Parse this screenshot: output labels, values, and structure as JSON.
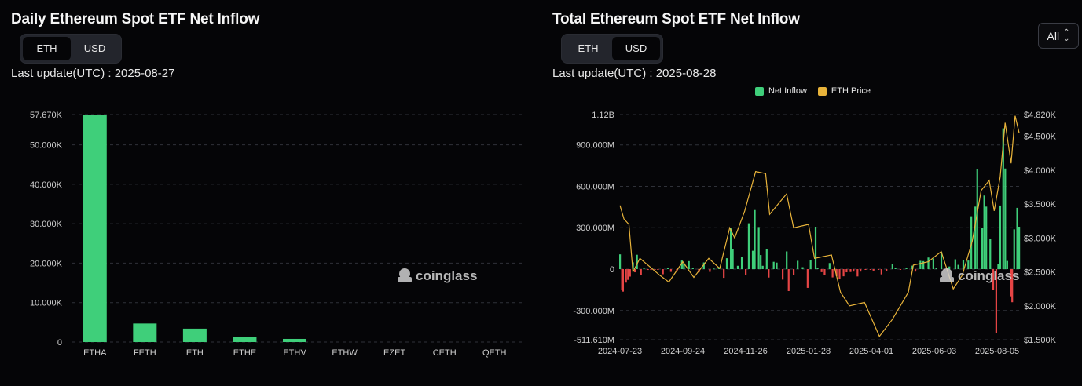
{
  "left": {
    "title": "Daily Ethereum Spot ETF Net Inflow",
    "toggle": [
      {
        "label": "ETH",
        "active": true
      },
      {
        "label": "USD",
        "active": false
      }
    ],
    "last_update": "Last update(UTC) : 2025-08-27",
    "watermark": "coinglass"
  },
  "right": {
    "title": "Total Ethereum Spot ETF Net Inflow",
    "toggle": [
      {
        "label": "ETH",
        "active": false
      },
      {
        "label": "USD",
        "active": true
      }
    ],
    "last_update": "Last update(UTC) : 2025-08-28",
    "range_select": "All",
    "watermark": "coinglass",
    "legend": [
      {
        "label": "Net Inflow",
        "color": "#3fcf7a"
      },
      {
        "label": "ETH Price",
        "color": "#e8b33a"
      }
    ]
  },
  "chart_data": [
    {
      "type": "bar",
      "title": "Daily Ethereum Spot ETF Net Inflow",
      "unit": "ETH",
      "categories": [
        "ETHA",
        "FETH",
        "ETH",
        "ETHE",
        "ETHV",
        "ETHW",
        "EZET",
        "CETH",
        "QETH"
      ],
      "values": [
        57670,
        4700,
        3400,
        1300,
        800,
        0,
        0,
        0,
        0
      ],
      "ylim": [
        0,
        57670
      ],
      "yticks": [
        0,
        10000,
        20000,
        30000,
        40000,
        50000,
        57670
      ],
      "ytick_labels": [
        "0",
        "10.000K",
        "20.000K",
        "30.000K",
        "40.000K",
        "50.000K",
        "57.670K"
      ],
      "grid": true,
      "bar_color": "#3fcf7a"
    },
    {
      "type": "bar+line",
      "title": "Total Ethereum Spot ETF Net Inflow",
      "unit": "USD",
      "x_ticks": [
        "2024-07-23",
        "2024-09-24",
        "2024-11-26",
        "2025-01-28",
        "2025-04-01",
        "2025-06-03",
        "2025-08-05"
      ],
      "left_axis": {
        "ylim": [
          -511610000,
          1120000000
        ],
        "ticks": [
          -511610000,
          -300000000,
          0,
          300000000,
          600000000,
          900000000,
          1120000000
        ],
        "tick_labels": [
          "-511.610M",
          "-300.000M",
          "0",
          "300.000M",
          "600.000M",
          "900.000M",
          "1.12B"
        ]
      },
      "right_axis": {
        "ylim": [
          1500,
          4820
        ],
        "ticks": [
          1500,
          2000,
          2500,
          3000,
          3500,
          4000,
          4500,
          4820
        ],
        "tick_labels": [
          "$1.500K",
          "$2.000K",
          "$2.500K",
          "$3.000K",
          "$3.500K",
          "$4.000K",
          "$4.500K",
          "$4.820K"
        ]
      },
      "series": [
        {
          "name": "Net Inflow",
          "axis": "left",
          "kind": "bar",
          "points": [
            [
              "2024-07-23",
              107
            ],
            [
              "2024-07-25",
              -152
            ],
            [
              "2024-07-26",
              -163
            ],
            [
              "2024-07-29",
              -98
            ],
            [
              "2024-07-31",
              -78
            ],
            [
              "2024-08-02",
              -54
            ],
            [
              "2024-08-05",
              49
            ],
            [
              "2024-08-07",
              -23
            ],
            [
              "2024-08-09",
              104
            ],
            [
              "2024-08-13",
              -40
            ],
            [
              "2024-08-16",
              5
            ],
            [
              "2024-08-20",
              -6
            ],
            [
              "2024-08-23",
              -6
            ],
            [
              "2024-08-27",
              -3
            ],
            [
              "2024-08-30",
              -5
            ],
            [
              "2024-09-04",
              -37
            ],
            [
              "2024-09-09",
              11
            ],
            [
              "2024-09-12",
              -20
            ],
            [
              "2024-09-18",
              -15
            ],
            [
              "2024-09-23",
              62
            ],
            [
              "2024-09-25",
              43
            ],
            [
              "2024-09-30",
              58
            ],
            [
              "2024-10-04",
              7
            ],
            [
              "2024-10-10",
              -23
            ],
            [
              "2024-10-15",
              48
            ],
            [
              "2024-10-21",
              -20
            ],
            [
              "2024-10-25",
              4
            ],
            [
              "2024-10-30",
              14
            ],
            [
              "2024-11-04",
              -63
            ],
            [
              "2024-11-07",
              79
            ],
            [
              "2024-11-11",
              295
            ],
            [
              "2024-11-13",
              146
            ],
            [
              "2024-11-18",
              24
            ],
            [
              "2024-11-22",
              91
            ],
            [
              "2024-11-26",
              -40
            ],
            [
              "2024-11-29",
              332
            ],
            [
              "2024-12-03",
              133
            ],
            [
              "2024-12-05",
              428
            ],
            [
              "2024-12-09",
              305
            ],
            [
              "2024-12-11",
              102
            ],
            [
              "2024-12-13",
              24
            ],
            [
              "2024-12-17",
              145
            ],
            [
              "2024-12-19",
              -61
            ],
            [
              "2024-12-24",
              53
            ],
            [
              "2024-12-27",
              47
            ],
            [
              "2025-01-02",
              -76
            ],
            [
              "2025-01-06",
              128
            ],
            [
              "2025-01-08",
              -159
            ],
            [
              "2025-01-13",
              -40
            ],
            [
              "2025-01-17",
              60
            ],
            [
              "2025-01-22",
              14
            ],
            [
              "2025-01-27",
              -136
            ],
            [
              "2025-01-30",
              67
            ],
            [
              "2025-02-04",
              307
            ],
            [
              "2025-02-06",
              11
            ],
            [
              "2025-02-10",
              -22
            ],
            [
              "2025-02-13",
              -41
            ],
            [
              "2025-02-18",
              44
            ],
            [
              "2025-02-21",
              -60
            ],
            [
              "2025-02-25",
              -50
            ],
            [
              "2025-02-28",
              -71
            ],
            [
              "2025-03-04",
              -52
            ],
            [
              "2025-03-07",
              -23
            ],
            [
              "2025-03-11",
              -21
            ],
            [
              "2025-03-14",
              -18
            ],
            [
              "2025-03-18",
              -53
            ],
            [
              "2025-03-21",
              -18
            ],
            [
              "2025-03-26",
              -5
            ],
            [
              "2025-03-31",
              -4
            ],
            [
              "2025-04-03",
              -11
            ],
            [
              "2025-04-08",
              -3
            ],
            [
              "2025-04-11",
              -38
            ],
            [
              "2025-04-16",
              -12
            ],
            [
              "2025-04-22",
              38
            ],
            [
              "2025-04-25",
              6
            ],
            [
              "2025-04-30",
              -3
            ],
            [
              "2025-05-06",
              6
            ],
            [
              "2025-05-12",
              25
            ],
            [
              "2025-05-15",
              -18
            ],
            [
              "2025-05-20",
              60
            ],
            [
              "2025-05-23",
              58
            ],
            [
              "2025-05-28",
              84
            ],
            [
              "2025-06-02",
              78
            ],
            [
              "2025-06-05",
              11
            ],
            [
              "2025-06-10",
              125
            ],
            [
              "2025-06-13",
              -2
            ],
            [
              "2025-06-18",
              19
            ],
            [
              "2025-06-24",
              71
            ],
            [
              "2025-06-27",
              31
            ],
            [
              "2025-07-02",
              64
            ],
            [
              "2025-07-07",
              62
            ],
            [
              "2025-07-10",
              383
            ],
            [
              "2025-07-14",
              453
            ],
            [
              "2025-07-16",
              727
            ],
            [
              "2025-07-21",
              296
            ],
            [
              "2025-07-23",
              533
            ],
            [
              "2025-07-25",
              453
            ],
            [
              "2025-07-29",
              218
            ],
            [
              "2025-08-01",
              -152
            ],
            [
              "2025-08-04",
              -465
            ],
            [
              "2025-08-06",
              35
            ],
            [
              "2025-08-08",
              461
            ],
            [
              "2025-08-11",
              1020
            ],
            [
              "2025-08-13",
              729
            ],
            [
              "2025-08-15",
              59
            ],
            [
              "2025-08-19",
              -197
            ],
            [
              "2025-08-20",
              -240
            ],
            [
              "2025-08-22",
              288
            ],
            [
              "2025-08-25",
              444
            ],
            [
              "2025-08-27",
              307
            ]
          ]
        },
        {
          "name": "ETH Price",
          "axis": "right",
          "kind": "line",
          "points": [
            [
              "2024-07-23",
              3480
            ],
            [
              "2024-07-27",
              3280
            ],
            [
              "2024-08-01",
              3200
            ],
            [
              "2024-08-05",
              2500
            ],
            [
              "2024-08-12",
              2700
            ],
            [
              "2024-08-20",
              2600
            ],
            [
              "2024-09-01",
              2450
            ],
            [
              "2024-09-10",
              2350
            ],
            [
              "2024-09-24",
              2650
            ],
            [
              "2024-10-05",
              2420
            ],
            [
              "2024-10-20",
              2700
            ],
            [
              "2024-10-31",
              2550
            ],
            [
              "2024-11-10",
              3150
            ],
            [
              "2024-11-15",
              3000
            ],
            [
              "2024-11-25",
              3400
            ],
            [
              "2024-12-06",
              3980
            ],
            [
              "2024-12-16",
              3950
            ],
            [
              "2024-12-20",
              3350
            ],
            [
              "2025-01-06",
              3650
            ],
            [
              "2025-01-13",
              3150
            ],
            [
              "2025-01-28",
              3200
            ],
            [
              "2025-02-03",
              2700
            ],
            [
              "2025-02-20",
              2750
            ],
            [
              "2025-03-01",
              2200
            ],
            [
              "2025-03-10",
              2000
            ],
            [
              "2025-03-25",
              2050
            ],
            [
              "2025-04-09",
              1550
            ],
            [
              "2025-04-22",
              1800
            ],
            [
              "2025-05-08",
              2200
            ],
            [
              "2025-05-13",
              2600
            ],
            [
              "2025-05-28",
              2650
            ],
            [
              "2025-06-10",
              2800
            ],
            [
              "2025-06-22",
              2250
            ],
            [
              "2025-07-01",
              2450
            ],
            [
              "2025-07-11",
              2950
            ],
            [
              "2025-07-20",
              3700
            ],
            [
              "2025-07-28",
              3850
            ],
            [
              "2025-08-02",
              3400
            ],
            [
              "2025-08-08",
              3900
            ],
            [
              "2025-08-13",
              4700
            ],
            [
              "2025-08-19",
              4100
            ],
            [
              "2025-08-23",
              4800
            ],
            [
              "2025-08-27",
              4550
            ]
          ]
        }
      ],
      "grid": true,
      "legend_position": "top"
    }
  ]
}
